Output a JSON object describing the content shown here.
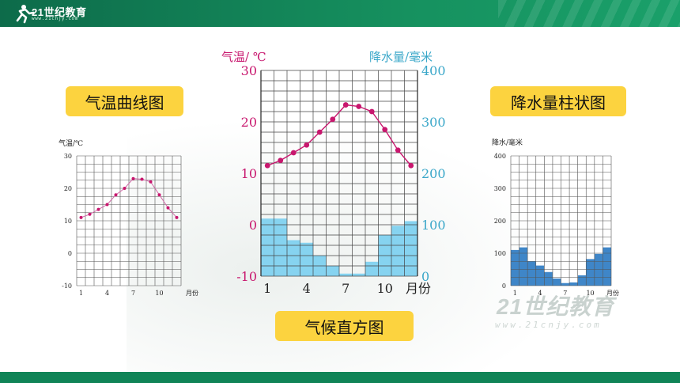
{
  "header": {
    "brand_mark": "21世纪教育",
    "brand_url": "www.21cnjy.com"
  },
  "labels": {
    "temp_curve": "气温曲线图",
    "precip_bars": "降水量柱状图",
    "climate_chart": "气候直方图"
  },
  "watermark": {
    "text": "21世纪教育",
    "sub": "www.21cnjy.com"
  },
  "colors": {
    "temp": "#c8176e",
    "precip_axis": "#3aa7c9",
    "bar_light": "#86d3f0",
    "bar_dark": "#3f86c8",
    "pill": "#fcd33f",
    "brand_green": "#108457"
  },
  "chart_data": [
    {
      "type": "line",
      "title": "",
      "ylabel": "气温/℃",
      "xlabel": "月份",
      "x": [
        1,
        2,
        3,
        4,
        5,
        6,
        7,
        8,
        9,
        10,
        11,
        12
      ],
      "x_tick_labels": [
        "1",
        "4",
        "7",
        "10"
      ],
      "x_unit_label": "月份",
      "y_ticks": [
        -10,
        0,
        10,
        20,
        30
      ],
      "ylim": [
        -10,
        30
      ],
      "series": [
        {
          "values": [
            11,
            12,
            13.5,
            15,
            18,
            20,
            23,
            22.8,
            22,
            18,
            14,
            11
          ]
        }
      ],
      "grid": true
    },
    {
      "type": "bar+line",
      "title": "",
      "left_axis_label": "气温/ ℃",
      "right_axis_label": "降水量/毫米",
      "x": [
        1,
        2,
        3,
        4,
        5,
        6,
        7,
        8,
        9,
        10,
        11,
        12
      ],
      "x_tick_labels": [
        "1",
        "4",
        "7",
        "10"
      ],
      "x_unit_label": "月份",
      "temp_ticks": [
        -10,
        0,
        10,
        20,
        30
      ],
      "precip_ticks": [
        0,
        100,
        200,
        300,
        400
      ],
      "temp_range": [
        -10,
        30
      ],
      "precip_range": [
        0,
        400
      ],
      "temperature": [
        11.5,
        12.5,
        14,
        15.5,
        18,
        20.5,
        23.3,
        23,
        22,
        18.5,
        14.5,
        11.5
      ],
      "precipitation": [
        112,
        112,
        70,
        65,
        40,
        20,
        5,
        5,
        28,
        80,
        98,
        107
      ],
      "grid": true
    },
    {
      "type": "bar",
      "title": "",
      "ylabel": "降水/毫米",
      "x": [
        1,
        2,
        3,
        4,
        5,
        6,
        7,
        8,
        9,
        10,
        11,
        12
      ],
      "x_tick_labels": [
        "1",
        "4",
        "7",
        "10"
      ],
      "x_unit_label": "月份",
      "y_ticks": [
        0,
        100,
        200,
        300,
        400
      ],
      "ylim": [
        0,
        400
      ],
      "values": [
        110,
        118,
        75,
        62,
        42,
        22,
        8,
        10,
        32,
        82,
        98,
        118
      ],
      "grid": true
    }
  ]
}
